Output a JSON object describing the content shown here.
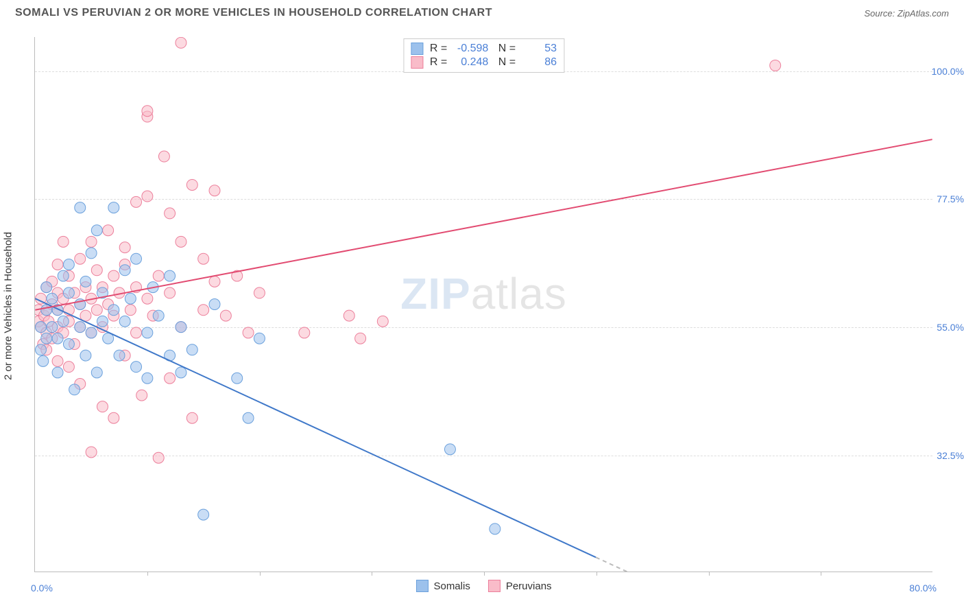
{
  "header": {
    "title": "SOMALI VS PERUVIAN 2 OR MORE VEHICLES IN HOUSEHOLD CORRELATION CHART",
    "source_prefix": "Source: ",
    "source_name": "ZipAtlas.com"
  },
  "chart": {
    "type": "scatter",
    "y_axis_label": "2 or more Vehicles in Household",
    "xlim": [
      0,
      80
    ],
    "ylim": [
      12,
      106
    ],
    "x_range_labels": {
      "min": "0.0%",
      "max": "80.0%"
    },
    "y_ticks": [
      {
        "v": 32.5,
        "label": "32.5%"
      },
      {
        "v": 55.0,
        "label": "55.0%"
      },
      {
        "v": 77.5,
        "label": "77.5%"
      },
      {
        "v": 100.0,
        "label": "100.0%"
      }
    ],
    "x_ticks": [
      10,
      20,
      30,
      40,
      50,
      60,
      70
    ],
    "background_color": "#ffffff",
    "grid_color": "#dddddd",
    "watermark": {
      "zip": "ZIP",
      "atlas": "atlas"
    },
    "series": {
      "somali": {
        "label": "Somalis",
        "fill": "#9cc1ec",
        "stroke": "#6aa0dc",
        "fill_opacity": 0.55,
        "marker_radius": 8,
        "R": "-0.598",
        "N": "53",
        "trend": {
          "x1": 0,
          "y1": 60,
          "x2": 50,
          "y2": 14.5,
          "color": "#3f78c9",
          "width": 2,
          "dash_after_x": 50,
          "dash_to_x": 56
        },
        "points": [
          [
            0.5,
            51
          ],
          [
            0.5,
            55
          ],
          [
            0.7,
            49
          ],
          [
            1,
            58
          ],
          [
            1,
            62
          ],
          [
            1,
            53
          ],
          [
            1.5,
            55
          ],
          [
            1.5,
            60
          ],
          [
            2,
            53
          ],
          [
            2,
            58
          ],
          [
            2,
            47
          ],
          [
            2.5,
            64
          ],
          [
            2.5,
            56
          ],
          [
            3,
            52
          ],
          [
            3,
            61
          ],
          [
            3,
            66
          ],
          [
            3.5,
            44
          ],
          [
            4,
            76
          ],
          [
            4,
            59
          ],
          [
            4,
            55
          ],
          [
            4.5,
            50
          ],
          [
            4.5,
            63
          ],
          [
            5,
            54
          ],
          [
            5,
            68
          ],
          [
            5.5,
            47
          ],
          [
            5.5,
            72
          ],
          [
            6,
            56
          ],
          [
            6,
            61
          ],
          [
            6.5,
            53
          ],
          [
            7,
            58
          ],
          [
            7,
            76
          ],
          [
            7.5,
            50
          ],
          [
            8,
            65
          ],
          [
            8,
            56
          ],
          [
            8.5,
            60
          ],
          [
            9,
            48
          ],
          [
            9,
            67
          ],
          [
            10,
            46
          ],
          [
            10,
            54
          ],
          [
            10.5,
            62
          ],
          [
            11,
            57
          ],
          [
            12,
            50
          ],
          [
            12,
            64
          ],
          [
            13,
            47
          ],
          [
            13,
            55
          ],
          [
            14,
            51
          ],
          [
            15,
            22
          ],
          [
            16,
            59
          ],
          [
            18,
            46
          ],
          [
            19,
            39
          ],
          [
            20,
            53
          ],
          [
            37,
            33.5
          ],
          [
            41,
            19.5
          ]
        ]
      },
      "peruvian": {
        "label": "Peruvians",
        "fill": "#f9bcc9",
        "stroke": "#ec7f9b",
        "fill_opacity": 0.55,
        "marker_radius": 8,
        "R": "0.248",
        "N": "86",
        "trend": {
          "x1": 0,
          "y1": 58,
          "x2": 80,
          "y2": 88,
          "color": "#e24b71",
          "width": 2
        },
        "points": [
          [
            0.3,
            56
          ],
          [
            0.3,
            58
          ],
          [
            0.5,
            55
          ],
          [
            0.5,
            60
          ],
          [
            0.7,
            52
          ],
          [
            0.8,
            57
          ],
          [
            1,
            54
          ],
          [
            1,
            58
          ],
          [
            1,
            62
          ],
          [
            1,
            51
          ],
          [
            1.2,
            56
          ],
          [
            1.5,
            59
          ],
          [
            1.5,
            53
          ],
          [
            1.5,
            63
          ],
          [
            2,
            55
          ],
          [
            2,
            58
          ],
          [
            2,
            61
          ],
          [
            2,
            49
          ],
          [
            2,
            66
          ],
          [
            2.5,
            54
          ],
          [
            2.5,
            60
          ],
          [
            2.5,
            70
          ],
          [
            3,
            56
          ],
          [
            3,
            58
          ],
          [
            3,
            64
          ],
          [
            3,
            48
          ],
          [
            3.5,
            52
          ],
          [
            3.5,
            61
          ],
          [
            4,
            55
          ],
          [
            4,
            59
          ],
          [
            4,
            67
          ],
          [
            4,
            45
          ],
          [
            4.5,
            57
          ],
          [
            4.5,
            62
          ],
          [
            5,
            54
          ],
          [
            5,
            70
          ],
          [
            5,
            33
          ],
          [
            5,
            60
          ],
          [
            5.5,
            58
          ],
          [
            5.5,
            65
          ],
          [
            6,
            41
          ],
          [
            6,
            62
          ],
          [
            6,
            55
          ],
          [
            6.5,
            59
          ],
          [
            6.5,
            72
          ],
          [
            7,
            39
          ],
          [
            7,
            57
          ],
          [
            7,
            64
          ],
          [
            7.5,
            61
          ],
          [
            8,
            50
          ],
          [
            8,
            66
          ],
          [
            8,
            69
          ],
          [
            8.5,
            58
          ],
          [
            9,
            54
          ],
          [
            9,
            62
          ],
          [
            9,
            77
          ],
          [
            9.5,
            43
          ],
          [
            10,
            92
          ],
          [
            10,
            93
          ],
          [
            10,
            78
          ],
          [
            10,
            60
          ],
          [
            10.5,
            57
          ],
          [
            11,
            32
          ],
          [
            11,
            64
          ],
          [
            11.5,
            85
          ],
          [
            12,
            61
          ],
          [
            12,
            75
          ],
          [
            12,
            46
          ],
          [
            13,
            105
          ],
          [
            13,
            70
          ],
          [
            13,
            55
          ],
          [
            14,
            80
          ],
          [
            14,
            39
          ],
          [
            15,
            67
          ],
          [
            15,
            58
          ],
          [
            16,
            63
          ],
          [
            16,
            79
          ],
          [
            17,
            57
          ],
          [
            18,
            64
          ],
          [
            19,
            54
          ],
          [
            20,
            61
          ],
          [
            24,
            54
          ],
          [
            28,
            57
          ],
          [
            29,
            53
          ],
          [
            31,
            56
          ],
          [
            66,
            101
          ]
        ]
      }
    },
    "legend_bottom": [
      {
        "key": "somali",
        "label": "Somalis"
      },
      {
        "key": "peruvian",
        "label": "Peruvians"
      }
    ]
  }
}
